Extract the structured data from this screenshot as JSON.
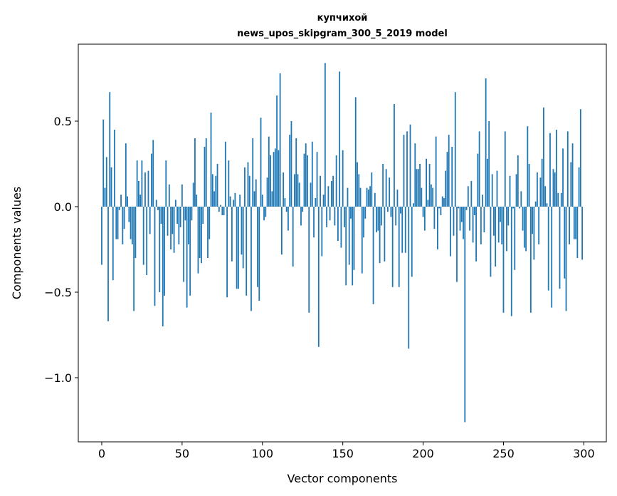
{
  "chart_data": {
    "type": "bar",
    "title": [
      "купчихой",
      "news_upos_skipgram_300_5_2019 model"
    ],
    "xlabel": "Vector components",
    "ylabel": "Components values",
    "xlim": [
      -14.6,
      314
    ],
    "ylim": [
      -1.375,
      0.95
    ],
    "xticks": [
      0,
      50,
      100,
      150,
      200,
      250,
      300
    ],
    "xtick_labels": [
      "0",
      "50",
      "100",
      "150",
      "200",
      "250",
      "300"
    ],
    "yticks": [
      0.5,
      0.0,
      -0.5,
      -1.0
    ],
    "ytick_labels": [
      "0.5",
      "0.0",
      "−0.5",
      "−1.0"
    ],
    "grid": false,
    "color": "#1f77b4",
    "bar_width": 0.8,
    "values": [
      -0.34,
      0.51,
      0.11,
      0.29,
      -0.67,
      0.67,
      0.23,
      -0.43,
      0.45,
      -0.19,
      -0.19,
      -0.02,
      0.07,
      -0.22,
      -0.13,
      0.37,
      0.06,
      -0.09,
      -0.19,
      -0.22,
      -0.61,
      -0.3,
      0.27,
      0.15,
      0.07,
      0.27,
      -0.34,
      0.2,
      -0.4,
      0.21,
      -0.16,
      0.31,
      0.39,
      -0.58,
      0.04,
      -0.02,
      -0.5,
      -0.1,
      -0.7,
      -0.52,
      0.27,
      -0.17,
      0.13,
      -0.25,
      -0.16,
      -0.27,
      0.04,
      -0.1,
      -0.22,
      -0.12,
      0.13,
      -0.44,
      -0.08,
      -0.59,
      -0.22,
      -0.52,
      -0.08,
      0.14,
      0.4,
      0.07,
      -0.39,
      -0.3,
      -0.33,
      -0.1,
      0.35,
      0.4,
      -0.3,
      -0.19,
      0.55,
      0.19,
      0.09,
      0.18,
      0.25,
      -0.03,
      0.01,
      -0.05,
      -0.05,
      0.38,
      -0.53,
      0.27,
      0.06,
      -0.32,
      0.04,
      0.08,
      -0.48,
      -0.48,
      0.07,
      -0.28,
      -0.36,
      0.23,
      -0.52,
      0.26,
      0.18,
      -0.61,
      0.4,
      0.09,
      0.16,
      -0.47,
      -0.55,
      0.52,
      0.07,
      -0.08,
      -0.06,
      0.17,
      0.41,
      0.3,
      0.09,
      0.32,
      0.34,
      0.65,
      0.33,
      0.78,
      -0.28,
      0.2,
      0.05,
      -0.03,
      -0.14,
      0.42,
      0.5,
      -0.35,
      0.19,
      0.4,
      0.19,
      0.14,
      -0.11,
      -0.03,
      0.31,
      0.37,
      0.3,
      -0.62,
      0.14,
      0.38,
      -0.18,
      0.05,
      0.32,
      -0.82,
      0.18,
      -0.29,
      0.07,
      0.84,
      -0.12,
      0.12,
      -0.08,
      0.15,
      0.18,
      -0.11,
      0.3,
      -0.2,
      0.79,
      -0.24,
      0.33,
      -0.12,
      -0.46,
      0.11,
      -0.34,
      -0.07,
      -0.46,
      -0.37,
      0.64,
      0.26,
      0.19,
      0.11,
      -0.39,
      -0.18,
      -0.07,
      0.11,
      0.1,
      0.12,
      0.2,
      -0.57,
      0.08,
      -0.15,
      -0.14,
      -0.33,
      -0.11,
      0.25,
      -0.32,
      0.22,
      -0.03,
      0.17,
      -0.06,
      -0.47,
      0.6,
      -0.11,
      0.1,
      -0.47,
      -0.04,
      -0.27,
      0.42,
      -0.27,
      0.44,
      -0.83,
      0.48,
      -0.41,
      0.02,
      0.37,
      0.22,
      0.22,
      0.25,
      0.11,
      -0.06,
      -0.14,
      0.28,
      0.04,
      0.25,
      0.13,
      0.11,
      -0.13,
      0.41,
      -0.25,
      -0.01,
      -0.05,
      0.06,
      0.05,
      0.21,
      0.32,
      0.42,
      -0.29,
      0.35,
      -0.17,
      0.67,
      -0.44,
      -0.01,
      -0.14,
      -0.09,
      -0.19,
      -1.26,
      -0.02,
      0.12,
      -0.14,
      0.15,
      -0.21,
      -0.05,
      -0.32,
      0.31,
      0.44,
      -0.22,
      0.07,
      -0.15,
      0.75,
      0.28,
      0.5,
      -0.41,
      0.19,
      -0.17,
      -0.35,
      0.21,
      -0.21,
      -0.09,
      -0.22,
      -0.62,
      0.44,
      -0.26,
      -0.11,
      0.18,
      -0.64,
      -0.01,
      -0.37,
      0.19,
      0.3,
      -0.01,
      0.09,
      -0.14,
      -0.24,
      -0.26,
      0.47,
      0.25,
      -0.62,
      -0.16,
      -0.31,
      0.03,
      0.2,
      -0.22,
      0.17,
      0.28,
      0.58,
      0.12,
      0.02,
      -0.49,
      0.43,
      -0.59,
      0.22,
      0.2,
      0.45,
      0.08,
      -0.48,
      0.08,
      0.34,
      -0.42,
      -0.61,
      0.44,
      -0.22,
      0.26,
      0.37,
      -0.19,
      -0.19,
      -0.3,
      0.23,
      0.57,
      -0.31
    ]
  }
}
